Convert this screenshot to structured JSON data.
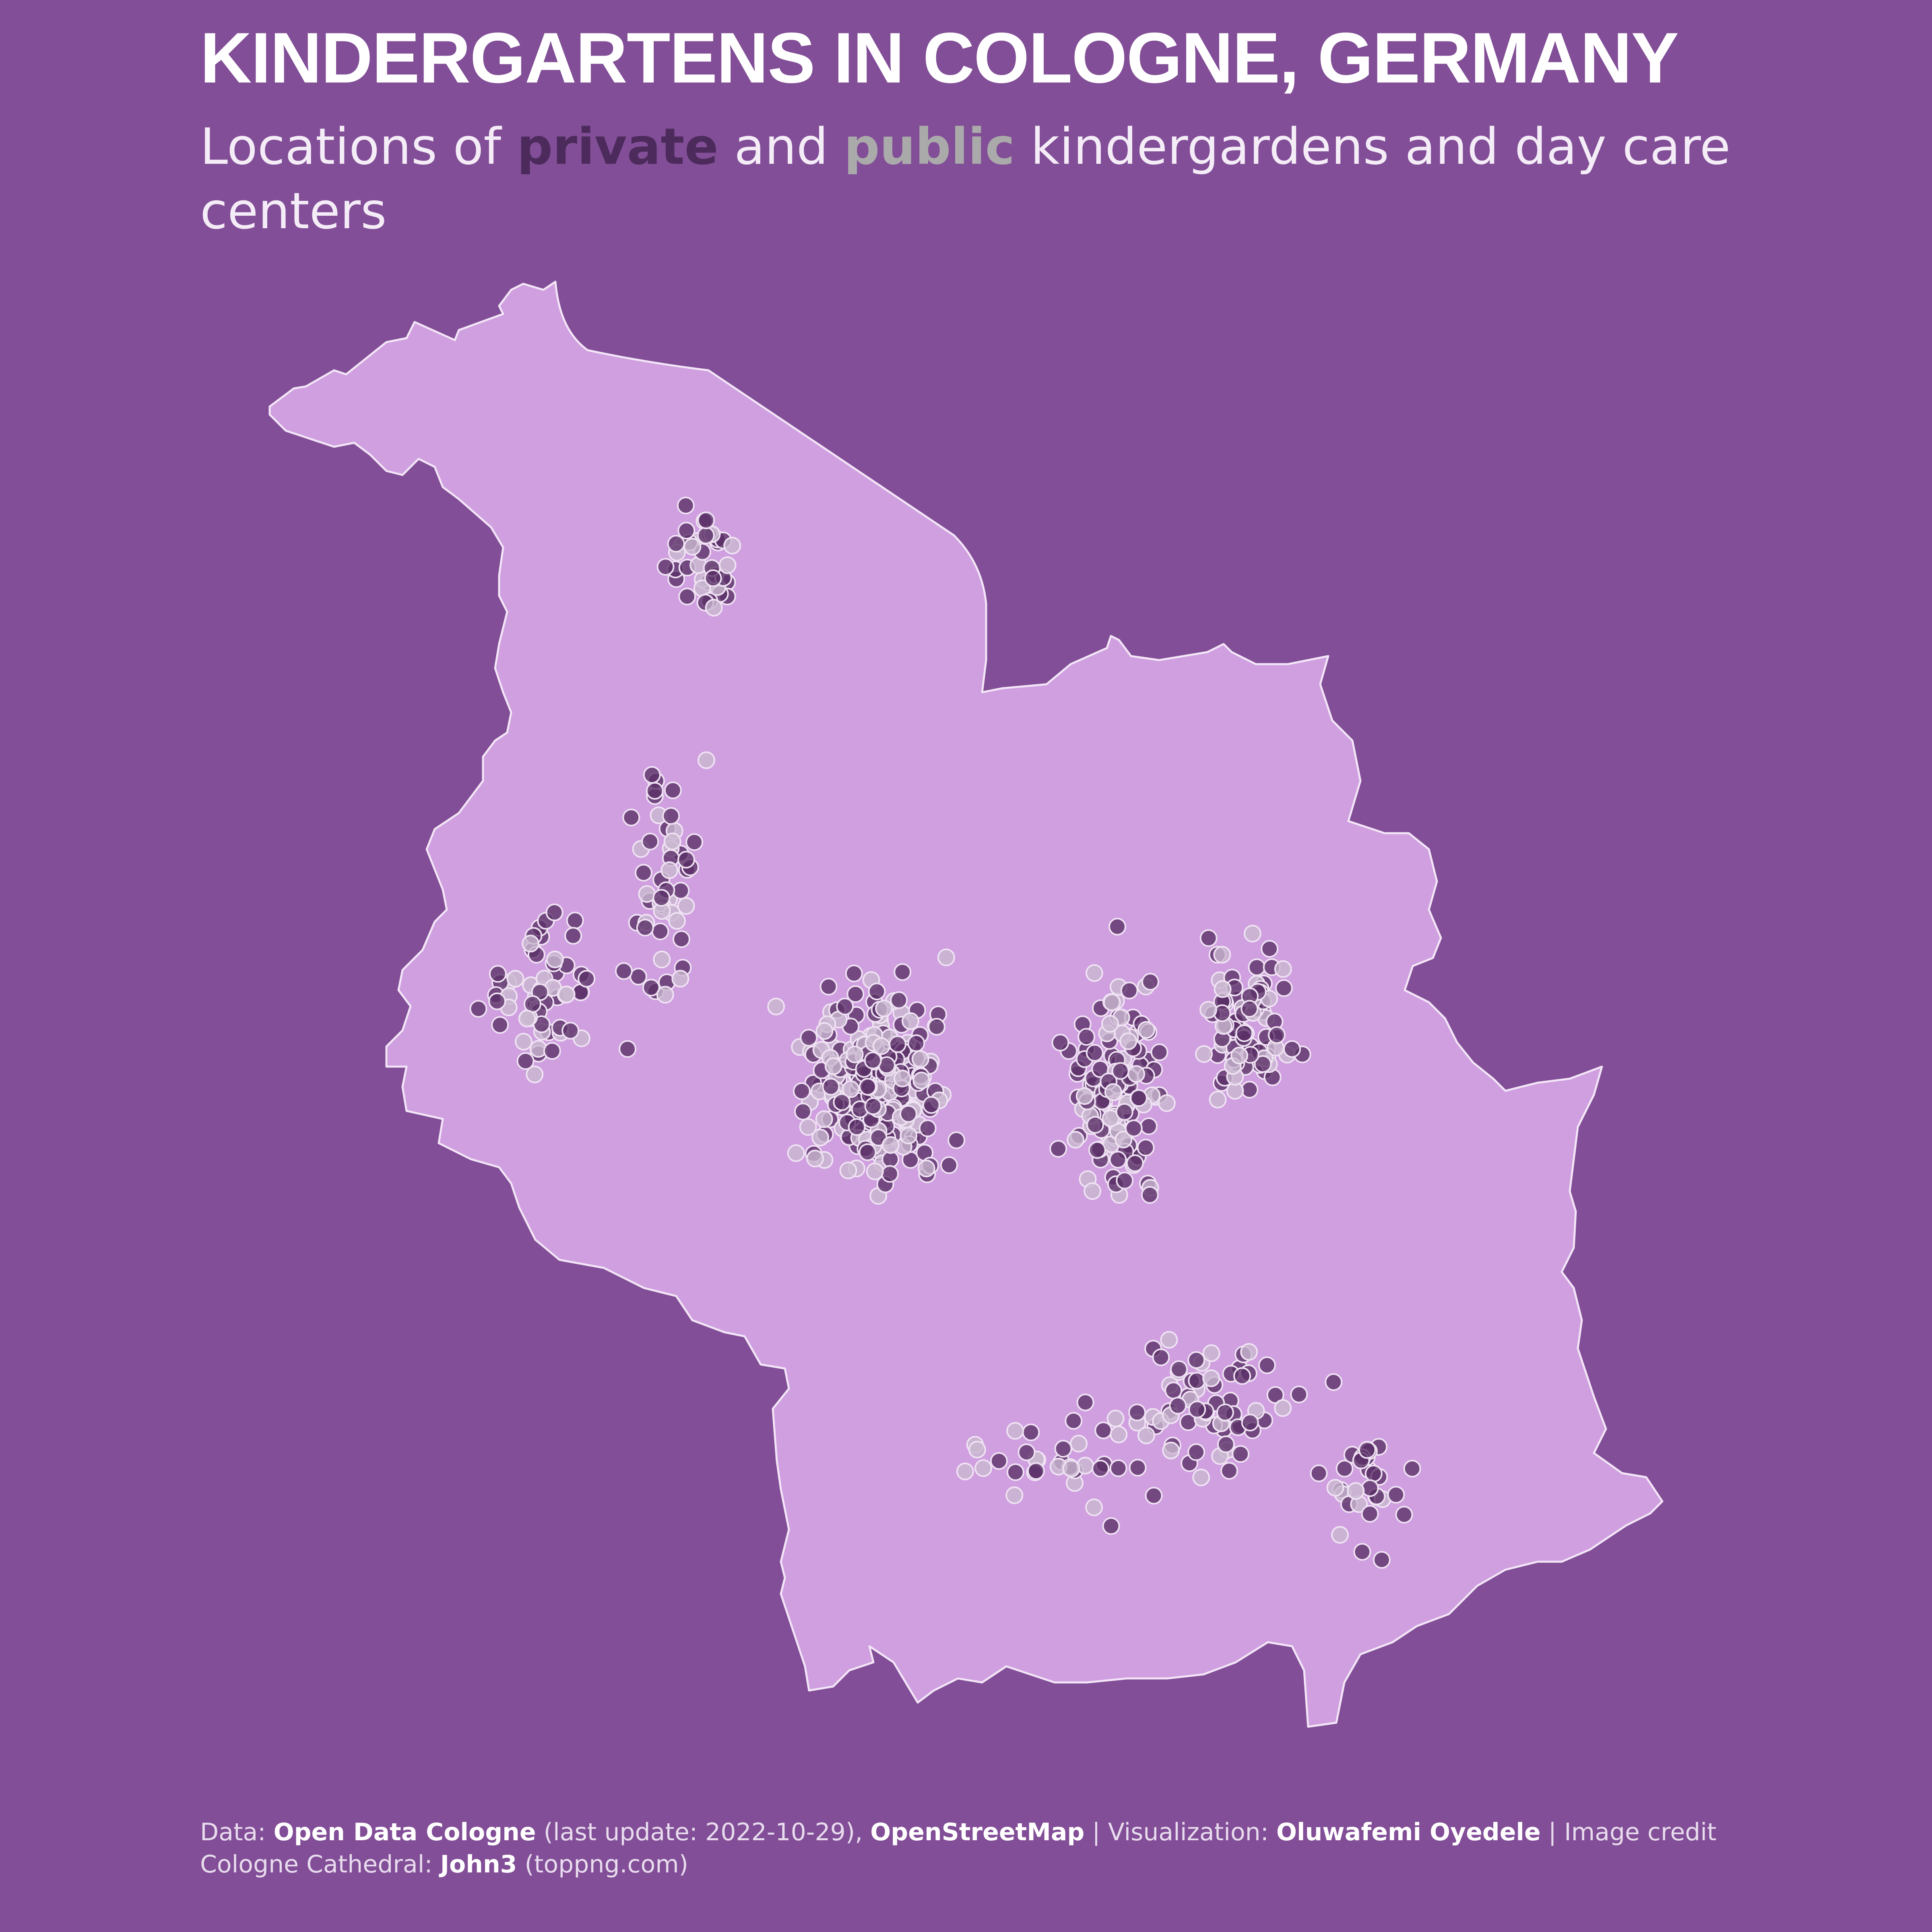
{
  "header": {
    "title": "KINDERGARTENS IN COLOGNE, GERMANY",
    "subtitle_parts": [
      "Locations of ",
      "private",
      " and ",
      "public",
      " kindergardens and day care centers"
    ]
  },
  "colors": {
    "background": "#824e97",
    "city_fill": "#cf9fe0",
    "city_outline": "#f3e6f7",
    "private_point": "#5b3168",
    "public_point": "#c9b8cf",
    "point_stroke": "#efe2f3"
  },
  "legend": {
    "private_label": "private",
    "public_label": "public"
  },
  "map": {
    "region": "Cologne city boundary",
    "markers": "kindergarten locations"
  },
  "footer": {
    "parts": [
      {
        "text": "Data: ",
        "bold": false
      },
      {
        "text": "Open Data Cologne",
        "bold": true
      },
      {
        "text": " (last update: 2022-10-29), ",
        "bold": false
      },
      {
        "text": "OpenStreetMap",
        "bold": true
      },
      {
        "text": " | Visualization: ",
        "bold": false
      },
      {
        "text": "Oluwafemi Oyedele",
        "bold": true
      },
      {
        "text": " | Image credit Cologne Cathedral: ",
        "bold": false
      },
      {
        "text": "John3",
        "bold": true
      },
      {
        "text": " (toppng.com)",
        "bold": false
      }
    ]
  }
}
